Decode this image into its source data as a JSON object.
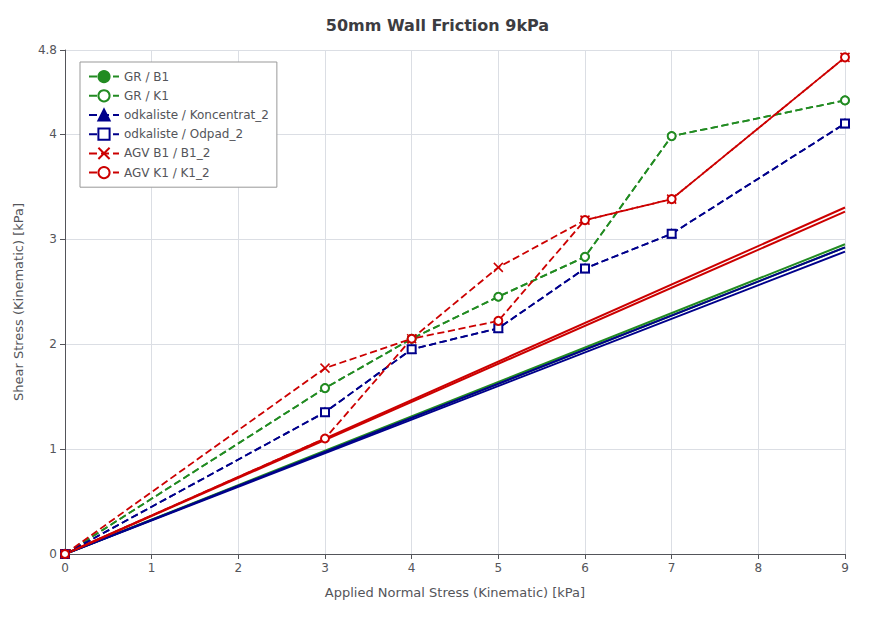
{
  "chart_data": {
    "type": "line",
    "title": "50mm Wall Friction 9kPa",
    "xlabel": "Applied Normal Stress (Kinematic) [kPa]",
    "ylabel": "Shear Stress (Kinematic) [kPa]",
    "xlim": [
      0,
      9
    ],
    "ylim": [
      0,
      4.8
    ],
    "xticks": [
      0,
      1,
      2,
      3,
      4,
      5,
      6,
      7,
      8,
      9
    ],
    "yticks": [
      0,
      1,
      2,
      3,
      4
    ],
    "grid": true,
    "legend": "upper left",
    "series": [
      {
        "name": "GR / B1",
        "color": "#228B22",
        "marker": "circle",
        "line_style": "dashed",
        "x": [
          0,
          3,
          4,
          5,
          6,
          7,
          9
        ],
        "values": [
          0.0,
          1.58,
          2.05,
          2.45,
          2.83,
          3.98,
          4.32
        ]
      },
      {
        "name": "GR / K1",
        "color": "#228B22",
        "marker": "open-circle",
        "line_style": "dashed",
        "x": [
          0,
          3,
          4,
          5,
          6,
          7,
          9
        ],
        "values": [
          0.0,
          1.58,
          2.05,
          2.45,
          2.83,
          3.98,
          4.32
        ]
      },
      {
        "name": "odkaliste / Koncentrat_2",
        "color": "#00008B",
        "marker": "triangle",
        "line_style": "dashed",
        "x": [
          0,
          3,
          4,
          5,
          6,
          7,
          9
        ],
        "values": [
          0.0,
          1.35,
          1.95,
          2.15,
          2.72,
          3.05,
          4.1
        ]
      },
      {
        "name": "odkaliste / Odpad_2",
        "color": "#00008B",
        "marker": "open-square",
        "line_style": "dashed",
        "x": [
          0,
          3,
          4,
          5,
          6,
          7,
          9
        ],
        "values": [
          0.0,
          1.35,
          1.95,
          2.15,
          2.72,
          3.05,
          4.1
        ]
      },
      {
        "name": "AGV B1 / B1_2",
        "color": "#cc0000",
        "marker": "x",
        "line_style": "dashed",
        "x": [
          0,
          3,
          4,
          5,
          6,
          7,
          9
        ],
        "values": [
          0.0,
          1.77,
          2.05,
          2.73,
          3.18,
          3.38,
          4.73
        ]
      },
      {
        "name": "AGV K1 / K1_2",
        "color": "#cc0000",
        "marker": "open-circle",
        "line_style": "dashed",
        "x": [
          0,
          3,
          4,
          5,
          6,
          7,
          9
        ],
        "values": [
          0.0,
          1.1,
          2.05,
          2.22,
          3.18,
          3.38,
          4.73
        ]
      },
      {
        "color": "#228B22",
        "line_style": "solid",
        "x": [
          0,
          9
        ],
        "values": [
          0,
          2.95
        ]
      },
      {
        "color": "#228B22",
        "line_style": "solid",
        "x": [
          0,
          9
        ],
        "values": [
          0,
          2.92
        ]
      },
      {
        "color": "#00008B",
        "line_style": "solid",
        "x": [
          0,
          9
        ],
        "values": [
          0,
          2.92
        ]
      },
      {
        "color": "#00008B",
        "line_style": "solid",
        "x": [
          0,
          9
        ],
        "values": [
          0,
          2.88
        ]
      },
      {
        "color": "#cc0000",
        "line_style": "solid",
        "x": [
          0,
          9
        ],
        "values": [
          0,
          3.3
        ]
      },
      {
        "color": "#cc0000",
        "line_style": "solid",
        "x": [
          0,
          9
        ],
        "values": [
          0,
          3.26
        ]
      }
    ]
  }
}
